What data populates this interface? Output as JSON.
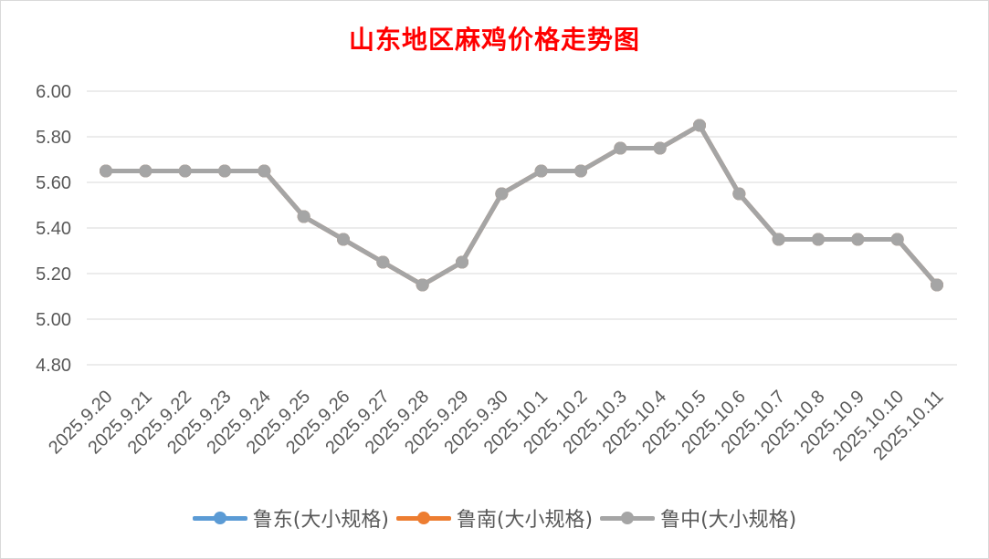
{
  "chart_data": {
    "type": "line",
    "title": "山东地区麻鸡价格走势图",
    "categories": [
      "2025.9.20",
      "2025.9.21",
      "2025.9.22",
      "2025.9.23",
      "2025.9.24",
      "2025.9.25",
      "2025.9.26",
      "2025.9.27",
      "2025.9.28",
      "2025.9.29",
      "2025.9.30",
      "2025.10.1",
      "2025.10.2",
      "2025.10.3",
      "2025.10.4",
      "2025.10.5",
      "2025.10.6",
      "2025.10.7",
      "2025.10.8",
      "2025.10.9",
      "2025.10.10",
      "2025.10.11"
    ],
    "series": [
      {
        "name": "鲁东(大小规格)",
        "color": "#5b9bd5",
        "values": [
          5.65,
          5.65,
          5.65,
          5.65,
          5.65,
          5.45,
          5.35,
          5.25,
          5.15,
          5.25,
          5.55,
          5.65,
          5.65,
          5.75,
          5.75,
          5.85,
          5.55,
          5.35,
          5.35,
          5.35,
          5.35,
          5.15
        ]
      },
      {
        "name": "鲁南(大小规格)",
        "color": "#ed7d31",
        "values": [
          5.65,
          5.65,
          5.65,
          5.65,
          5.65,
          5.45,
          5.35,
          5.25,
          5.15,
          5.25,
          5.55,
          5.65,
          5.65,
          5.75,
          5.75,
          5.85,
          5.55,
          5.35,
          5.35,
          5.35,
          5.35,
          5.15
        ]
      },
      {
        "name": "鲁中(大小规格)",
        "color": "#a5a5a5",
        "values": [
          5.65,
          5.65,
          5.65,
          5.65,
          5.65,
          5.45,
          5.35,
          5.25,
          5.15,
          5.25,
          5.55,
          5.65,
          5.65,
          5.75,
          5.75,
          5.85,
          5.55,
          5.35,
          5.35,
          5.35,
          5.35,
          5.15
        ]
      }
    ],
    "ylim": [
      4.8,
      6.0
    ],
    "yticks": [
      "4.80",
      "5.00",
      "5.20",
      "5.40",
      "5.60",
      "5.80",
      "6.00"
    ],
    "grid": true,
    "legend_position": "bottom"
  }
}
